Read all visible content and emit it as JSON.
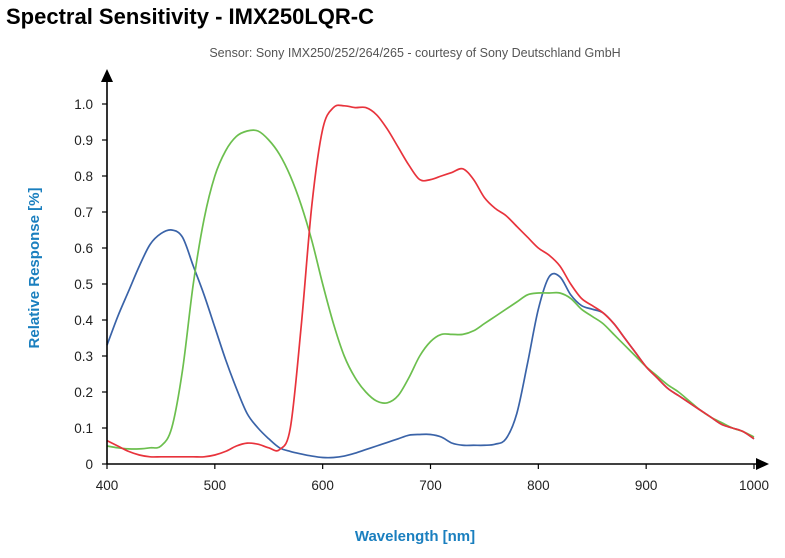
{
  "page_title": "Spectral Sensitivity - IMX250LQR-C",
  "chart_data": {
    "type": "line",
    "title": "Spectral Sensitivity - IMX250LQR-C",
    "subtitle": "Sensor: Sony IMX250/252/264/265 - courtesy of Sony Deutschland GmbH",
    "xlabel": "Wavelength [nm]",
    "ylabel": "Relative Response [%]",
    "xlim": [
      400,
      1000
    ],
    "ylim": [
      0,
      1.0
    ],
    "xticks": [
      "400",
      "500",
      "600",
      "700",
      "800",
      "900",
      "1000"
    ],
    "yticks": [
      "0",
      "0.1",
      "0.2",
      "0.3",
      "0.4",
      "0.5",
      "0.6",
      "0.7",
      "0.8",
      "0.9",
      "1.0"
    ],
    "grid": false,
    "legend": "none",
    "colors": {
      "blue": "#3a63a8",
      "green": "#6cbf4e",
      "red": "#e8333c",
      "axis": "#000000",
      "label": "#1a7fbf"
    },
    "series": [
      {
        "color": "#3a63a8",
        "x": [
          400,
          410,
          420,
          430,
          440,
          450,
          460,
          470,
          480,
          490,
          500,
          510,
          520,
          530,
          540,
          550,
          560,
          570,
          580,
          590,
          600,
          610,
          620,
          630,
          640,
          650,
          660,
          670,
          680,
          690,
          700,
          710,
          720,
          730,
          740,
          750,
          760,
          770,
          780,
          790,
          800,
          810,
          820,
          830,
          840,
          850,
          860,
          870,
          880,
          890,
          900,
          910,
          920,
          930,
          940,
          950,
          960,
          970,
          980,
          990,
          1000
        ],
        "y": [
          0.33,
          0.41,
          0.48,
          0.55,
          0.61,
          0.64,
          0.65,
          0.63,
          0.55,
          0.47,
          0.38,
          0.29,
          0.21,
          0.14,
          0.1,
          0.07,
          0.045,
          0.035,
          0.028,
          0.022,
          0.018,
          0.018,
          0.022,
          0.03,
          0.04,
          0.05,
          0.06,
          0.07,
          0.08,
          0.082,
          0.082,
          0.075,
          0.058,
          0.052,
          0.052,
          0.052,
          0.055,
          0.07,
          0.14,
          0.28,
          0.43,
          0.52,
          0.52,
          0.47,
          0.44,
          0.43,
          0.42,
          0.39,
          0.35,
          0.31,
          0.27,
          0.24,
          0.21,
          0.19,
          0.17,
          0.15,
          0.13,
          0.11,
          0.1,
          0.09,
          0.07
        ]
      },
      {
        "color": "#6cbf4e",
        "x": [
          400,
          410,
          420,
          430,
          440,
          450,
          460,
          470,
          480,
          490,
          500,
          510,
          520,
          530,
          540,
          550,
          560,
          570,
          580,
          590,
          600,
          610,
          620,
          630,
          640,
          650,
          660,
          670,
          680,
          690,
          700,
          710,
          720,
          730,
          740,
          750,
          760,
          770,
          780,
          790,
          800,
          810,
          820,
          830,
          840,
          850,
          860,
          870,
          880,
          890,
          900,
          910,
          920,
          930,
          940,
          950,
          960,
          970,
          980,
          990,
          1000
        ],
        "y": [
          0.05,
          0.045,
          0.042,
          0.042,
          0.045,
          0.05,
          0.1,
          0.26,
          0.5,
          0.68,
          0.8,
          0.87,
          0.91,
          0.925,
          0.925,
          0.9,
          0.86,
          0.8,
          0.72,
          0.62,
          0.5,
          0.39,
          0.3,
          0.24,
          0.2,
          0.175,
          0.17,
          0.19,
          0.24,
          0.3,
          0.34,
          0.36,
          0.36,
          0.36,
          0.37,
          0.39,
          0.41,
          0.43,
          0.45,
          0.47,
          0.475,
          0.475,
          0.475,
          0.46,
          0.43,
          0.41,
          0.39,
          0.36,
          0.33,
          0.3,
          0.27,
          0.245,
          0.22,
          0.2,
          0.175,
          0.15,
          0.13,
          0.115,
          0.1,
          0.09,
          0.075
        ]
      },
      {
        "color": "#e8333c",
        "x": [
          400,
          410,
          420,
          430,
          440,
          450,
          460,
          470,
          480,
          490,
          500,
          510,
          520,
          530,
          540,
          550,
          560,
          570,
          580,
          590,
          600,
          610,
          620,
          630,
          640,
          650,
          660,
          670,
          680,
          690,
          700,
          710,
          720,
          730,
          740,
          750,
          760,
          770,
          780,
          790,
          800,
          810,
          820,
          830,
          840,
          850,
          860,
          870,
          880,
          890,
          900,
          910,
          920,
          930,
          940,
          950,
          960,
          970,
          980,
          990,
          1000
        ],
        "y": [
          0.065,
          0.05,
          0.035,
          0.025,
          0.02,
          0.02,
          0.02,
          0.02,
          0.02,
          0.02,
          0.025,
          0.035,
          0.05,
          0.058,
          0.055,
          0.045,
          0.04,
          0.1,
          0.38,
          0.72,
          0.93,
          0.99,
          0.995,
          0.99,
          0.99,
          0.97,
          0.93,
          0.88,
          0.83,
          0.79,
          0.79,
          0.8,
          0.81,
          0.82,
          0.79,
          0.74,
          0.71,
          0.69,
          0.66,
          0.63,
          0.6,
          0.58,
          0.55,
          0.5,
          0.46,
          0.44,
          0.42,
          0.39,
          0.35,
          0.31,
          0.27,
          0.24,
          0.21,
          0.19,
          0.17,
          0.15,
          0.13,
          0.11,
          0.1,
          0.09,
          0.07
        ]
      }
    ]
  }
}
